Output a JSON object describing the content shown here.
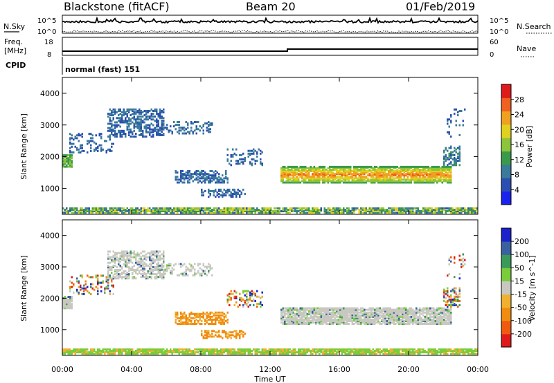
{
  "header": {
    "station": "Blackstone (fitACF)",
    "beam": "Beam 20",
    "date": "01/Feb/2019"
  },
  "top_panel": {
    "left_label": "N.Sky",
    "right_label": "N.Search",
    "left_ticks": [
      "10^5",
      "10^0"
    ],
    "right_ticks": [
      "10^5",
      "10^0"
    ]
  },
  "freq_panel": {
    "left_label_1": "Freq.",
    "left_label_2": "[MHz]",
    "right_label": "Nave",
    "left_ticks": [
      "18",
      "8"
    ],
    "right_ticks": [
      "60",
      "0"
    ]
  },
  "cpid": {
    "label": "CPID",
    "value": "normal (fast) 151"
  },
  "x_axis": {
    "title": "Time UT",
    "ticks": [
      "00:00",
      "04:00",
      "08:00",
      "12:00",
      "16:00",
      "20:00",
      "00:00"
    ]
  },
  "chart_data": [
    {
      "type": "heatmap",
      "title": "",
      "ylabel": "Slant Range [km]",
      "xlabel": "Time UT",
      "xlim": [
        0,
        24
      ],
      "ylim": [
        180,
        4500
      ],
      "y_ticks": [
        1000,
        2000,
        3000,
        4000
      ],
      "colorbar": {
        "label": "Power [dB]",
        "ticks": [
          "28",
          "24",
          "20",
          "16",
          "12",
          "8",
          "4"
        ],
        "range": [
          0,
          30
        ],
        "colors": [
          "#1a22ee",
          "#2b4fb0",
          "#3a7a9a",
          "#3a9a4a",
          "#8cc43a",
          "#e0d020",
          "#f0a020",
          "#f06020",
          "#e01a1a"
        ]
      }
    },
    {
      "type": "heatmap",
      "title": "",
      "ylabel": "Slant Range [km]",
      "xlabel": "Time UT",
      "xlim": [
        0,
        24
      ],
      "ylim": [
        180,
        4500
      ],
      "y_ticks": [
        1000,
        2000,
        3000,
        4000
      ],
      "colorbar": {
        "label": "Velocity [m s^-1]",
        "ticks": [
          "200",
          "100",
          "50",
          "15",
          "-15",
          "-50",
          "-100",
          "-200"
        ],
        "range": [
          -250,
          250
        ],
        "colors": [
          "#e01a1a",
          "#f05a10",
          "#f08c10",
          "#f0b030",
          "#c8c8c0",
          "#7acc3a",
          "#3a9a5a",
          "#3a60a0",
          "#1a22cc"
        ]
      }
    }
  ]
}
